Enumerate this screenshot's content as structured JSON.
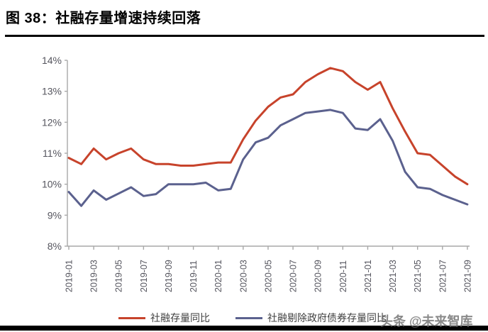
{
  "title": "图 38：社融存量增速持续回落",
  "watermark": "头条 @未来智库",
  "colors": {
    "series1": "#C7432B",
    "series2": "#5B618E",
    "axis": "#A8A8A8",
    "tick_label": "#55555E",
    "legend_text": "#3F3F3F",
    "rule": "#000000",
    "watermark": "#6E6E6E"
  },
  "legend": {
    "items": [
      {
        "label": "社融存量同比"
      },
      {
        "label": "社融剔除政府债券存量同比"
      }
    ]
  },
  "chart_data": {
    "type": "line",
    "title": "图 38：社融存量增速持续回落",
    "xlabel": "",
    "ylabel": "",
    "ylim": [
      8,
      14
    ],
    "grid": false,
    "legend_position": "bottom",
    "x": [
      "2019-01",
      "2019-02",
      "2019-03",
      "2019-04",
      "2019-05",
      "2019-06",
      "2019-07",
      "2019-08",
      "2019-09",
      "2019-10",
      "2019-11",
      "2019-12",
      "2020-01",
      "2020-02",
      "2020-03",
      "2020-04",
      "2020-05",
      "2020-06",
      "2020-07",
      "2020-08",
      "2020-09",
      "2020-10",
      "2020-11",
      "2020-12",
      "2021-01",
      "2021-02",
      "2021-03",
      "2021-04",
      "2021-05",
      "2021-06",
      "2021-07",
      "2021-08",
      "2021-09"
    ],
    "x_tick_labels": [
      "2019-01",
      "2019-03",
      "2019-05",
      "2019-07",
      "2019-09",
      "2019-11",
      "2020-01",
      "2020-03",
      "2020-05",
      "2020-07",
      "2020-09",
      "2020-11",
      "2021-01",
      "2021-03",
      "2021-05",
      "2021-07",
      "2021-09"
    ],
    "y_tick_labels": [
      "14%",
      "13%",
      "12%",
      "11%",
      "10%",
      "9%",
      "8%"
    ],
    "series": [
      {
        "name": "社融存量同比",
        "color": "#C7432B",
        "values": [
          10.85,
          10.65,
          11.15,
          10.8,
          11.0,
          11.15,
          10.8,
          10.65,
          10.65,
          10.6,
          10.6,
          10.65,
          10.7,
          10.7,
          11.45,
          12.05,
          12.5,
          12.8,
          12.9,
          13.3,
          13.55,
          13.75,
          13.65,
          13.3,
          13.05,
          13.3,
          12.45,
          11.7,
          11.0,
          10.95,
          10.6,
          10.25,
          10.0
        ]
      },
      {
        "name": "社融剔除政府债券存量同比",
        "color": "#5B618E",
        "values": [
          9.75,
          9.3,
          9.8,
          9.5,
          9.7,
          9.9,
          9.62,
          9.68,
          10.0,
          10.0,
          10.0,
          10.05,
          9.8,
          9.85,
          10.8,
          11.35,
          11.5,
          11.9,
          12.1,
          12.3,
          12.35,
          12.4,
          12.3,
          11.8,
          11.75,
          12.1,
          11.4,
          10.4,
          9.9,
          9.85,
          9.65,
          9.5,
          9.35
        ]
      }
    ]
  }
}
